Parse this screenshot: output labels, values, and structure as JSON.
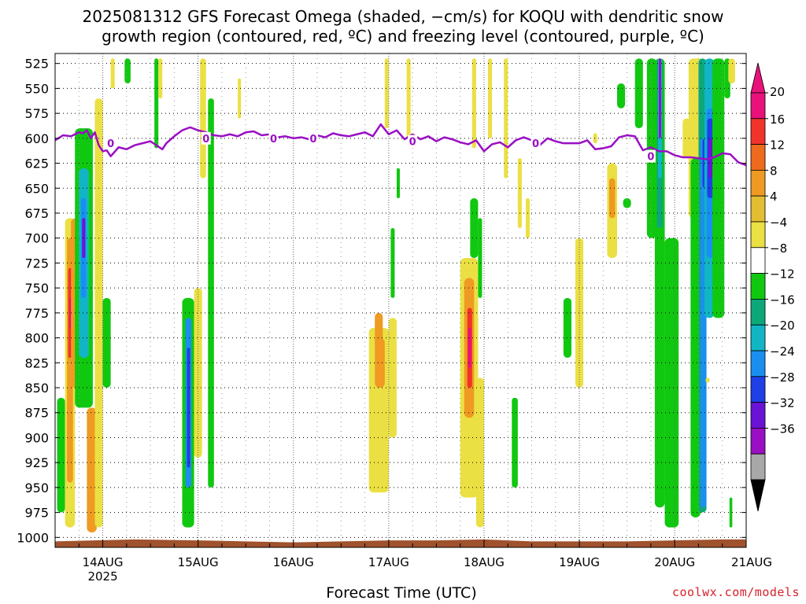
{
  "title_line1": "2025081312 GFS Forecast Omega (shaded, −cm/s) for KOQU with dendritic snow",
  "title_line2": "growth region (contoured, red, ºC) and freezing level (contoured, purple, ºC)",
  "credit": "coolwx.com/models",
  "chart_data": {
    "type": "heatmap",
    "title": "2025081312 GFS Forecast Omega (shaded, −cm/s) for KOQU with dendritic snow growth region (contoured, red, ºC) and freezing level (contoured, purple, ºC)",
    "xlabel": "Forecast Time (UTC)",
    "ylabel": "",
    "y_axis": {
      "unit": "hPa",
      "inverted": true,
      "ylim": [
        1010,
        515
      ],
      "ticks": [
        525,
        550,
        575,
        600,
        625,
        650,
        675,
        700,
        725,
        750,
        775,
        800,
        825,
        850,
        875,
        900,
        925,
        950,
        975,
        1000
      ]
    },
    "x_axis": {
      "unit": "forecast hour",
      "xlim": [
        0,
        174
      ],
      "ticks": [
        {
          "hour": 12,
          "label": "14AUG",
          "sublabel": "2025"
        },
        {
          "hour": 36,
          "label": "15AUG"
        },
        {
          "hour": 60,
          "label": "16AUG"
        },
        {
          "hour": 84,
          "label": "17AUG"
        },
        {
          "hour": 108,
          "label": "18AUG"
        },
        {
          "hour": 132,
          "label": "19AUG"
        },
        {
          "hour": 156,
          "label": "20AUG"
        },
        {
          "hour": 180,
          "label": "21AUG"
        }
      ]
    },
    "grid": true,
    "colorbar": {
      "labels": [
        "20",
        "16",
        "12",
        "8",
        "4",
        "−4",
        "−8",
        "−12",
        "−16",
        "−20",
        "−24",
        "−28",
        "−32",
        "−36"
      ],
      "bins": [
        {
          "color": "#e8127a"
        },
        {
          "color": "#f0332b"
        },
        {
          "color": "#ee6a1c"
        },
        {
          "color": "#ef9a22"
        },
        {
          "color": "#e3bd32"
        },
        {
          "color": "#ebe043"
        },
        {
          "color": "#ffffff"
        },
        {
          "color": "#10c810"
        },
        {
          "color": "#0ca87a"
        },
        {
          "color": "#12b5c4"
        },
        {
          "color": "#1a8ff0"
        },
        {
          "color": "#1e40e6"
        },
        {
          "color": "#6a13d6"
        },
        {
          "color": "#9a0ec4"
        },
        {
          "color": "#a8a8a8"
        }
      ],
      "over_color": "#e8127a",
      "under_color": "#000000"
    },
    "ground_color": "#a0522d",
    "ground_top": [
      [
        0,
        1004
      ],
      [
        10,
        1003
      ],
      [
        20,
        1002
      ],
      [
        36,
        1003
      ],
      [
        48,
        1004
      ],
      [
        60,
        1005
      ],
      [
        72,
        1004
      ],
      [
        84,
        1003
      ],
      [
        96,
        1003
      ],
      [
        108,
        1002
      ],
      [
        120,
        1004
      ],
      [
        132,
        1004
      ],
      [
        144,
        1004
      ],
      [
        156,
        1003
      ],
      [
        168,
        1002
      ],
      [
        174,
        1002
      ]
    ],
    "series": [
      {
        "name": "freezing level",
        "color": "#9a0ec4",
        "label": "0",
        "label_at": [
          [
            14,
            605
          ],
          [
            38,
            600
          ],
          [
            55,
            600
          ],
          [
            65,
            600
          ],
          [
            90,
            603
          ],
          [
            121,
            605
          ],
          [
            150,
            618
          ]
        ],
        "x": [
          0,
          2,
          4,
          6,
          7,
          8,
          9,
          10,
          11,
          12,
          13,
          14,
          16,
          18,
          20,
          24,
          27,
          28,
          30,
          32,
          34,
          36,
          38,
          40,
          42,
          44,
          46,
          48,
          50,
          52,
          54,
          56,
          58,
          60,
          62,
          64,
          66,
          68,
          70,
          72,
          74,
          76,
          78,
          80,
          82,
          84,
          86,
          88,
          90,
          92,
          94,
          96,
          98,
          100,
          102,
          104,
          106,
          108,
          110,
          112,
          114,
          116,
          118,
          120,
          122,
          124,
          126,
          128,
          130,
          132,
          134,
          136,
          138,
          140,
          142,
          144,
          146,
          148,
          150,
          152,
          154,
          156,
          158,
          160,
          162,
          164,
          166,
          168,
          170,
          172,
          174
        ],
        "values": [
          602,
          597,
          598,
          594,
          595,
          592,
          600,
          594,
          607,
          613,
          612,
          618,
          609,
          611,
          607,
          603,
          611,
          605,
          598,
          592,
          589,
          592,
          594,
          597,
          598,
          596,
          598,
          594,
          593,
          597,
          596,
          599,
          598,
          600,
          599,
          601,
          597,
          599,
          595,
          597,
          598,
          596,
          594,
          598,
          586,
          596,
          592,
          601,
          596,
          601,
          598,
          603,
          599,
          601,
          604,
          606,
          602,
          613,
          606,
          604,
          609,
          602,
          599,
          602,
          607,
          600,
          603,
          605,
          605,
          605,
          602,
          611,
          610,
          608,
          599,
          597,
          598,
          612,
          609,
          613,
          613,
          617,
          619,
          619,
          620,
          621,
          619,
          615,
          616,
          624,
          627
        ]
      }
    ],
    "shaded_cells": [
      {
        "x": [
          0.5,
          2.5
        ],
        "p": [
          860,
          975
        ],
        "color": "#10c810"
      },
      {
        "x": [
          2.5,
          5
        ],
        "p": [
          680,
          990
        ],
        "color": "#ebe043"
      },
      {
        "x": [
          3,
          4.5
        ],
        "p": [
          700,
          945
        ],
        "color": "#ef9a22"
      },
      {
        "x": [
          3.3,
          4.3
        ],
        "p": [
          730,
          820
        ],
        "color": "#f0332b"
      },
      {
        "x": [
          3.6,
          4.0
        ],
        "p": [
          760,
          790
        ],
        "color": "#e8127a"
      },
      {
        "x": [
          4,
          6.5
        ],
        "p": [
          680,
          850
        ],
        "color": "#ef9a22"
      },
      {
        "x": [
          5,
          9.5
        ],
        "p": [
          590,
          870
        ],
        "color": "#10c810"
      },
      {
        "x": [
          6,
          8.5
        ],
        "p": [
          630,
          820
        ],
        "color": "#12b5c4"
      },
      {
        "x": [
          6.5,
          7.8
        ],
        "p": [
          660,
          760
        ],
        "color": "#1a8ff0"
      },
      {
        "x": [
          6.8,
          7.6
        ],
        "p": [
          680,
          720
        ],
        "color": "#6a13d6"
      },
      {
        "x": [
          8,
          10.5
        ],
        "p": [
          870,
          995
        ],
        "color": "#ef9a22"
      },
      {
        "x": [
          10,
          12
        ],
        "p": [
          560,
          990
        ],
        "color": "#ebe043"
      },
      {
        "x": [
          12,
          14
        ],
        "p": [
          760,
          850
        ],
        "color": "#10c810"
      },
      {
        "x": [
          14,
          15
        ],
        "p": [
          520,
          550
        ],
        "color": "#ebe043"
      },
      {
        "x": [
          17.5,
          19
        ],
        "p": [
          520,
          545
        ],
        "color": "#10c810"
      },
      {
        "x": [
          25,
          26
        ],
        "p": [
          520,
          610
        ],
        "color": "#10c810"
      },
      {
        "x": [
          26,
          27
        ],
        "p": [
          520,
          560
        ],
        "color": "#ebe043"
      },
      {
        "x": [
          32,
          35
        ],
        "p": [
          760,
          990
        ],
        "color": "#10c810"
      },
      {
        "x": [
          32.8,
          34.3
        ],
        "p": [
          780,
          950
        ],
        "color": "#1a8ff0"
      },
      {
        "x": [
          33.2,
          34
        ],
        "p": [
          810,
          930
        ],
        "color": "#1e40e6"
      },
      {
        "x": [
          35,
          37
        ],
        "p": [
          750,
          920
        ],
        "color": "#ebe043"
      },
      {
        "x": [
          36.5,
          38
        ],
        "p": [
          520,
          640
        ],
        "color": "#ebe043"
      },
      {
        "x": [
          38.5,
          40
        ],
        "p": [
          560,
          950
        ],
        "color": "#10c810"
      },
      {
        "x": [
          46,
          46.8
        ],
        "p": [
          540,
          580
        ],
        "color": "#ebe043"
      },
      {
        "x": [
          79,
          84
        ],
        "p": [
          790,
          955
        ],
        "color": "#ebe043"
      },
      {
        "x": [
          80.5,
          83
        ],
        "p": [
          800,
          850
        ],
        "color": "#ef9a22"
      },
      {
        "x": [
          80.5,
          82.5
        ],
        "p": [
          775,
          810
        ],
        "color": "#ef9a22"
      },
      {
        "x": [
          84,
          86
        ],
        "p": [
          780,
          900
        ],
        "color": "#ebe043"
      },
      {
        "x": [
          83,
          84
        ],
        "p": [
          520,
          590
        ],
        "color": "#ebe043"
      },
      {
        "x": [
          84.5,
          85.5
        ],
        "p": [
          690,
          760
        ],
        "color": "#10c810"
      },
      {
        "x": [
          86,
          86.8
        ],
        "p": [
          630,
          660
        ],
        "color": "#10c810"
      },
      {
        "x": [
          88.5,
          89.5
        ],
        "p": [
          520,
          600
        ],
        "color": "#ebe043"
      },
      {
        "x": [
          102,
          106.5
        ],
        "p": [
          720,
          960
        ],
        "color": "#ebe043"
      },
      {
        "x": [
          103,
          105.5
        ],
        "p": [
          740,
          880
        ],
        "color": "#ef9a22"
      },
      {
        "x": [
          103.8,
          105
        ],
        "p": [
          770,
          850
        ],
        "color": "#f0332b"
      },
      {
        "x": [
          104,
          104.8
        ],
        "p": [
          790,
          830
        ],
        "color": "#e8127a"
      },
      {
        "x": [
          104.5,
          106.5
        ],
        "p": [
          660,
          720
        ],
        "color": "#10c810"
      },
      {
        "x": [
          105,
          106
        ],
        "p": [
          520,
          610
        ],
        "color": "#ebe043"
      },
      {
        "x": [
          106,
          108
        ],
        "p": [
          840,
          990
        ],
        "color": "#ebe043"
      },
      {
        "x": [
          106.5,
          107.5
        ],
        "p": [
          680,
          760
        ],
        "color": "#10c810"
      },
      {
        "x": [
          109,
          110
        ],
        "p": [
          520,
          600
        ],
        "color": "#ebe043"
      },
      {
        "x": [
          113,
          114
        ],
        "p": [
          520,
          640
        ],
        "color": "#ebe043"
      },
      {
        "x": [
          115,
          116.5
        ],
        "p": [
          860,
          950
        ],
        "color": "#10c810"
      },
      {
        "x": [
          116.5,
          117.5
        ],
        "p": [
          620,
          690
        ],
        "color": "#ebe043"
      },
      {
        "x": [
          118.5,
          119.5
        ],
        "p": [
          660,
          700
        ],
        "color": "#ebe043"
      },
      {
        "x": [
          128,
          130
        ],
        "p": [
          760,
          820
        ],
        "color": "#10c810"
      },
      {
        "x": [
          131,
          133
        ],
        "p": [
          700,
          850
        ],
        "color": "#ebe043"
      },
      {
        "x": [
          135.5,
          136.5
        ],
        "p": [
          595,
          605
        ],
        "color": "#ebe043"
      },
      {
        "x": [
          139,
          141.5
        ],
        "p": [
          625,
          720
        ],
        "color": "#ebe043"
      },
      {
        "x": [
          139.5,
          141
        ],
        "p": [
          640,
          680
        ],
        "color": "#ef9a22"
      },
      {
        "x": [
          141.5,
          143.5
        ],
        "p": [
          545,
          570
        ],
        "color": "#10c810"
      },
      {
        "x": [
          143,
          145
        ],
        "p": [
          660,
          670
        ],
        "color": "#10c810"
      },
      {
        "x": [
          146,
          148
        ],
        "p": [
          520,
          590
        ],
        "color": "#10c810"
      },
      {
        "x": [
          149,
          151.5
        ],
        "p": [
          520,
          700
        ],
        "color": "#10c810"
      },
      {
        "x": [
          151,
          153.5
        ],
        "p": [
          520,
          970
        ],
        "color": "#10c810"
      },
      {
        "x": [
          151.5,
          153
        ],
        "p": [
          520,
          690
        ],
        "color": "#0ca87a"
      },
      {
        "x": [
          151.8,
          152.8
        ],
        "p": [
          520,
          640
        ],
        "color": "#12b5c4"
      },
      {
        "x": [
          152,
          152.6
        ],
        "p": [
          520,
          600
        ],
        "color": "#9a0ec4"
      },
      {
        "x": [
          153.5,
          157
        ],
        "p": [
          700,
          990
        ],
        "color": "#10c810"
      },
      {
        "x": [
          158,
          160
        ],
        "p": [
          580,
          620
        ],
        "color": "#ebe043"
      },
      {
        "x": [
          159.5,
          163
        ],
        "p": [
          520,
          680
        ],
        "color": "#ebe043"
      },
      {
        "x": [
          160,
          162.5
        ],
        "p": [
          620,
          980
        ],
        "color": "#10c810"
      },
      {
        "x": [
          162,
          164
        ],
        "p": [
          520,
          975
        ],
        "color": "#0ca87a"
      },
      {
        "x": [
          162.5,
          164
        ],
        "p": [
          600,
          970
        ],
        "color": "#1a8ff0"
      },
      {
        "x": [
          163,
          164.5
        ],
        "p": [
          600,
          650
        ],
        "color": "#1e40e6"
      },
      {
        "x": [
          163.5,
          166
        ],
        "p": [
          520,
          780
        ],
        "color": "#12b5c4"
      },
      {
        "x": [
          164,
          166
        ],
        "p": [
          570,
          720
        ],
        "color": "#1a8ff0"
      },
      {
        "x": [
          164.2,
          165.8
        ],
        "p": [
          580,
          660
        ],
        "color": "#1e40e6"
      },
      {
        "x": [
          164.5,
          166.2
        ],
        "p": [
          600,
          640
        ],
        "color": "#6a13d6"
      },
      {
        "x": [
          166.5,
          167.5
        ],
        "p": [
          660,
          690
        ],
        "color": "#ebe043"
      },
      {
        "x": [
          165.5,
          168.5
        ],
        "p": [
          520,
          780
        ],
        "color": "#10c810"
      },
      {
        "x": [
          168.5,
          170
        ],
        "p": [
          520,
          560
        ],
        "color": "#10c810"
      },
      {
        "x": [
          169.5,
          171.2
        ],
        "p": [
          520,
          545
        ],
        "color": "#ebe043"
      },
      {
        "x": [
          169.8,
          170.5
        ],
        "p": [
          960,
          990
        ],
        "color": "#10c810"
      },
      {
        "x": [
          163.8,
          164.8
        ],
        "p": [
          840,
          845
        ],
        "color": "#ebe043"
      }
    ]
  }
}
